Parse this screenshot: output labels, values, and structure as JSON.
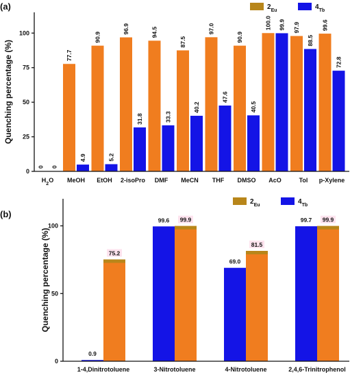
{
  "figure": {
    "colors": {
      "eu": "#F07D1F",
      "tb": "#1414E6",
      "eu_legend": "#B8861A"
    }
  },
  "chart_data": [
    {
      "panel": "(a)",
      "type": "bar",
      "ylabel": "Quenching percentage (%)",
      "ylim": [
        0,
        115
      ],
      "yticks": [
        "0",
        "25",
        "50",
        "75",
        "100"
      ],
      "legend": {
        "placement": "top-right"
      },
      "categories": [
        {
          "base": "H",
          "sub": "2",
          "tail": "O"
        },
        {
          "base": "MeOH"
        },
        {
          "base": "EtOH"
        },
        {
          "base": "2-isoPro"
        },
        {
          "base": "DMF"
        },
        {
          "base": "MeCN"
        },
        {
          "base": "THF"
        },
        {
          "base": "DMSO"
        },
        {
          "base": "AcO"
        },
        {
          "base": "Tol"
        },
        {
          "base": "p-Xylene"
        }
      ],
      "series": [
        {
          "name": "2",
          "name_sub": "Eu",
          "values": [
            0,
            77.7,
            90.9,
            96.9,
            94.5,
            87.5,
            97.0,
            90.9,
            100.0,
            97.9,
            99.6
          ],
          "labels": [
            "0",
            "77.7",
            "90.9",
            "96.9",
            "94.5",
            "87.5",
            "97.0",
            "90.9",
            "100.0",
            "97.9",
            "99.6"
          ]
        },
        {
          "name": "4",
          "name_sub": "Tb",
          "values": [
            0,
            4.9,
            5.2,
            31.8,
            33.3,
            40.2,
            47.6,
            40.5,
            99.9,
            88.5,
            72.8
          ],
          "labels": [
            "0",
            "4.9",
            "5.2",
            "31.8",
            "33.3",
            "40.2",
            "47.6",
            "40.5",
            "99.9",
            "88.5",
            "72.8"
          ]
        }
      ]
    },
    {
      "panel": "(b)",
      "type": "bar",
      "ylabel": "Quenching percentage (%)",
      "ylim": [
        0,
        120
      ],
      "yticks": [
        "0",
        "50",
        "100"
      ],
      "legend": {
        "placement": "top-right"
      },
      "categories": [
        {
          "base": "1-4,Dinitrotoluene"
        },
        {
          "base": "3-Nitrotoluene"
        },
        {
          "base": "4-Nitrotoluene"
        },
        {
          "base": "2,4,6-Trinitrophenol"
        }
      ],
      "series": [
        {
          "name": "2",
          "name_sub": "Eu",
          "values": [
            75.2,
            99.9,
            81.5,
            99.9
          ],
          "labels": [
            "75.2",
            "99.9",
            "81.5",
            "99.9"
          ]
        },
        {
          "name": "4",
          "name_sub": "Tb",
          "values": [
            0.9,
            99.6,
            69.0,
            99.7
          ],
          "labels": [
            "0.9",
            "99.6",
            "69.0",
            "99.7"
          ]
        }
      ]
    }
  ]
}
